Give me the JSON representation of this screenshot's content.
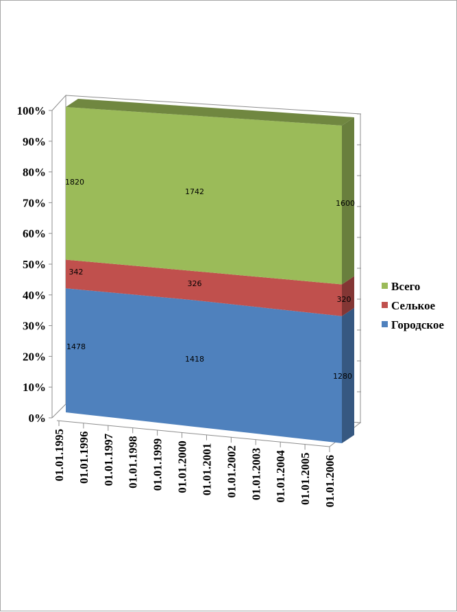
{
  "chart_data": {
    "type": "area",
    "stacking": "percent",
    "view": "3d",
    "title": "",
    "xlabel": "",
    "ylabel": "",
    "ylim": [
      0,
      100
    ],
    "y_ticks": [
      "0%",
      "10%",
      "20%",
      "30%",
      "40%",
      "50%",
      "60%",
      "70%",
      "80%",
      "90%",
      "100%"
    ],
    "categories": [
      "01.01.1995",
      "01.01.1996",
      "01.01.1997",
      "01.01.1998",
      "01.01.1999",
      "01.01.2000",
      "01.01.2001",
      "01.01.2002",
      "01.01.2003",
      "01.01.2004",
      "01.01.2005",
      "01.01.2006"
    ],
    "grid": true,
    "legend_position": "right",
    "series": [
      {
        "name": "Городское",
        "color": "#4f81bd",
        "points": [
          {
            "x": "01.01.1995",
            "value": 1478
          },
          {
            "x": "01.01.2000",
            "value": 1418
          },
          {
            "x": "01.01.2006",
            "value": 1280
          }
        ]
      },
      {
        "name": "Селькое",
        "color": "#c0504d",
        "points": [
          {
            "x": "01.01.1995",
            "value": 342
          },
          {
            "x": "01.01.2000",
            "value": 326
          },
          {
            "x": "01.01.2006",
            "value": 320
          }
        ]
      },
      {
        "name": "Всего",
        "color": "#9bbb59",
        "points": [
          {
            "x": "01.01.1995",
            "value": 1820
          },
          {
            "x": "01.01.2000",
            "value": 1742
          },
          {
            "x": "01.01.2006",
            "value": 1600
          }
        ]
      }
    ],
    "legend_order": [
      "Всего",
      "Селькое",
      "Городское"
    ]
  }
}
